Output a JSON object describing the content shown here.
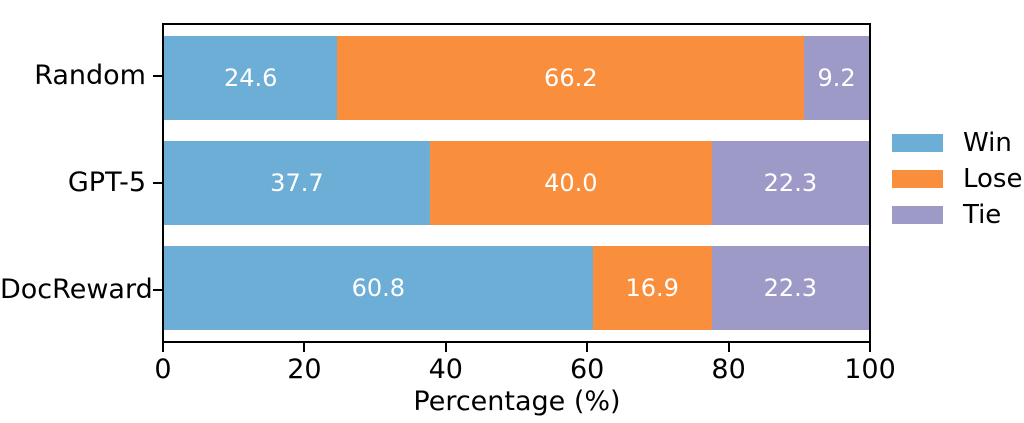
{
  "chart_data": {
    "type": "bar",
    "orientation": "horizontal",
    "stacked": true,
    "title": "",
    "xlabel": "Percentage (%)",
    "ylabel": "",
    "xlim": [
      0,
      100
    ],
    "xticks": [
      "0",
      "20",
      "40",
      "60",
      "80",
      "100"
    ],
    "grid": false,
    "legend_position": "right-outside",
    "categories": [
      "Random",
      "GPT-5",
      "DocReward"
    ],
    "series": [
      {
        "name": "Win",
        "color": "#6CAED6",
        "values": [
          24.6,
          37.7,
          60.8
        ],
        "labels": [
          "24.6",
          "37.7",
          "60.8"
        ]
      },
      {
        "name": "Lose",
        "color": "#F98E3C",
        "values": [
          66.2,
          40.0,
          16.9
        ],
        "labels": [
          "66.2",
          "40.0",
          "16.9"
        ]
      },
      {
        "name": "Tie",
        "color": "#9E9AC8",
        "values": [
          9.2,
          22.3,
          22.3
        ],
        "labels": [
          "9.2",
          "22.3",
          "22.3"
        ]
      }
    ],
    "bar_label_color": "#ffffff",
    "axis_color": "#000000"
  }
}
